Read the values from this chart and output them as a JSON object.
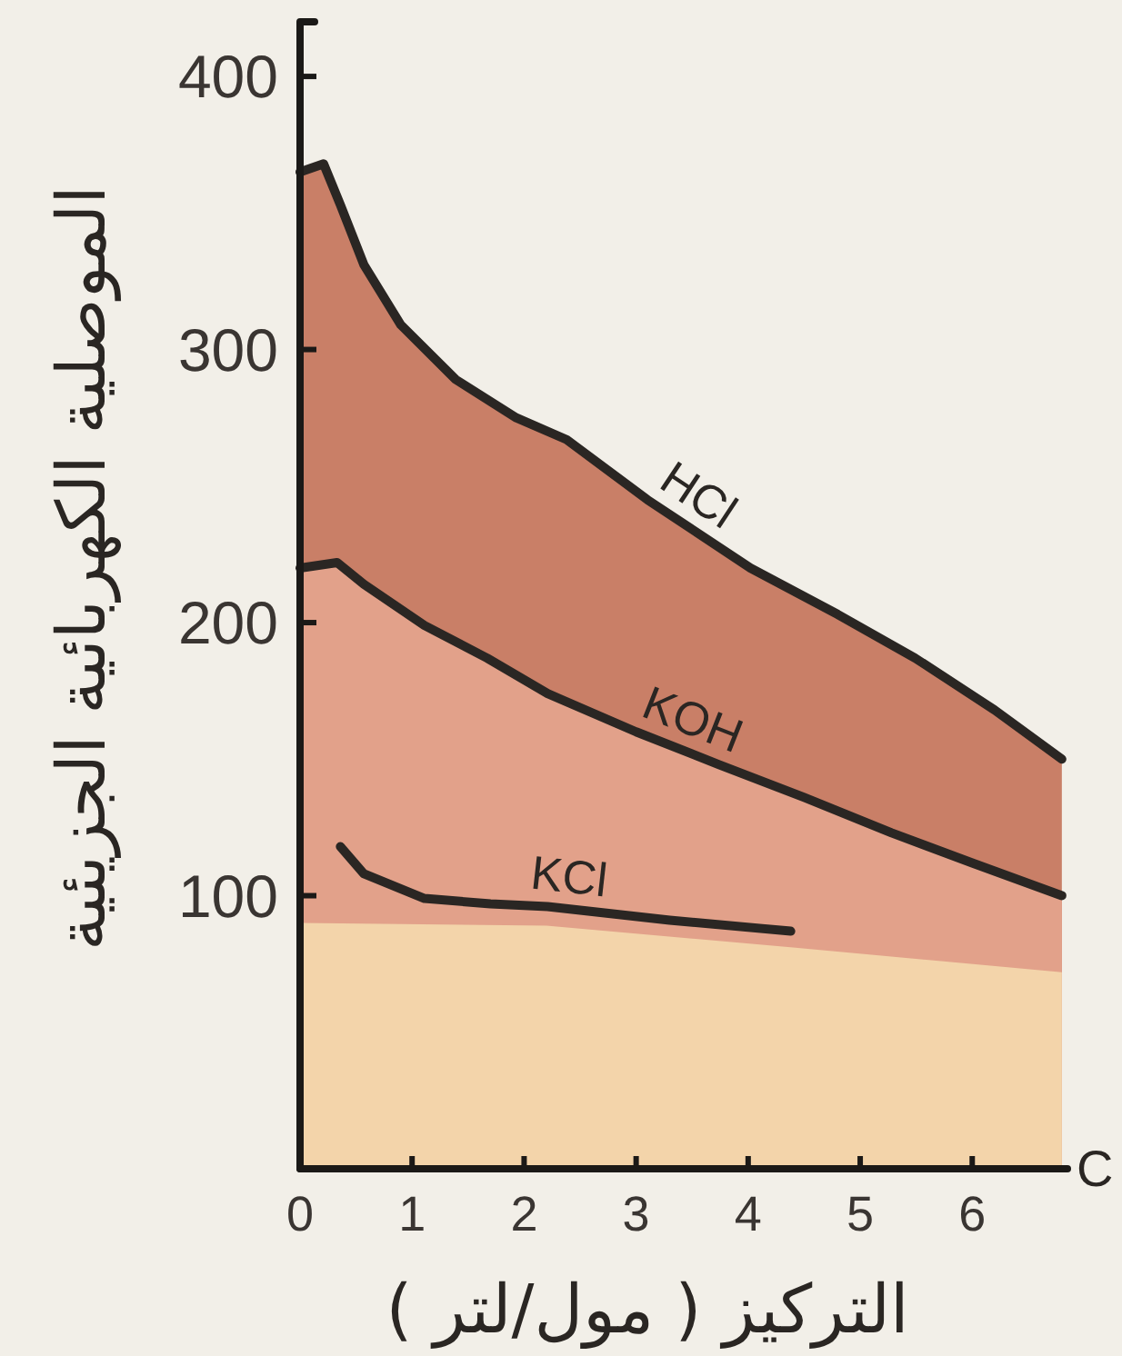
{
  "chart_data": {
    "type": "line",
    "xlabel": "التركيز ( مول/لتر )",
    "ylabel": "الموصلية الكهربائية الجزيئية",
    "annotations": [
      "C"
    ],
    "xlim": [
      0,
      6.85
    ],
    "ylim": [
      0,
      420
    ],
    "xticks": [
      0,
      1,
      2,
      3,
      4,
      5,
      6
    ],
    "yticks": [
      100,
      200,
      300,
      400
    ],
    "series": [
      {
        "name": "HCl",
        "type": "area",
        "color": "#c97f67",
        "x": [
          0,
          0.21,
          0.36,
          0.57,
          0.9,
          1.39,
          1.93,
          2.38,
          3.1,
          4.02,
          4.8,
          5.49,
          6.2,
          6.8
        ],
        "values": [
          365,
          368,
          353,
          331,
          309,
          289,
          275,
          267,
          245,
          220,
          203,
          187,
          168,
          150
        ]
      },
      {
        "name": "KOH",
        "type": "area",
        "color": "#e2a18a",
        "x": [
          0,
          0.33,
          0.57,
          1.11,
          1.67,
          2.21,
          3.0,
          3.74,
          4.5,
          5.28,
          6.0,
          6.8
        ],
        "values": [
          220,
          222,
          214,
          199,
          187,
          174,
          160,
          148,
          136,
          123,
          112,
          100
        ]
      },
      {
        "type": "area",
        "color": "#f3d4aa",
        "x": [
          0,
          2.2,
          4.4,
          6.8
        ],
        "values": [
          90,
          89,
          81,
          72
        ]
      },
      {
        "name": "KCl",
        "color": "#2a2623",
        "x": [
          0.36,
          0.57,
          1.11,
          1.7,
          2.21,
          3.3,
          4.38
        ],
        "values": [
          118,
          108,
          99,
          97,
          96,
          91,
          87
        ]
      }
    ]
  }
}
